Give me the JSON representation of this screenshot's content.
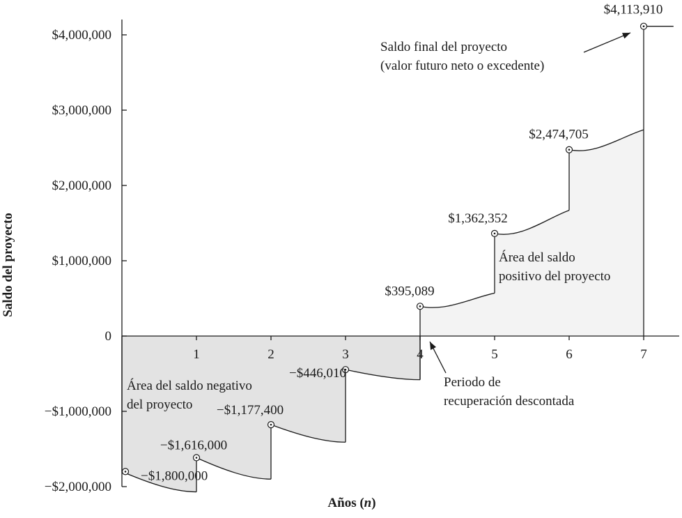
{
  "chart_data": {
    "type": "area",
    "xlabel_prefix": "Años (",
    "xlabel_var": "n",
    "xlabel_suffix": ")",
    "ylabel": "Saldo del proyecto",
    "x_ticks": [
      "1",
      "2",
      "3",
      "4",
      "5",
      "6",
      "7"
    ],
    "y_ticks": [
      {
        "value": 4000000,
        "label": "$4,000,000"
      },
      {
        "value": 3000000,
        "label": "$3,000,000"
      },
      {
        "value": 2000000,
        "label": "$2,000,000"
      },
      {
        "value": 1000000,
        "label": "$1,000,000"
      },
      {
        "value": 0,
        "label": "0"
      },
      {
        "value": -1000000,
        "label": "−$1,000,000"
      },
      {
        "value": -2000000,
        "label": "−$2,000,000"
      }
    ],
    "xlim": [
      0,
      7.5
    ],
    "ylim": [
      -2000000,
      4300000
    ],
    "points": [
      {
        "x": 0,
        "y": -1800000,
        "label": "−$1,800,000"
      },
      {
        "x": 1,
        "y": -1616000,
        "label": "−$1,616,000"
      },
      {
        "x": 2,
        "y": -1177400,
        "label": "−$1,177,400"
      },
      {
        "x": 3,
        "y": -446010,
        "label": "−$446,010"
      },
      {
        "x": 4,
        "y": 395089,
        "label": "$395,089"
      },
      {
        "x": 5,
        "y": 1362352,
        "label": "$1,362,352"
      },
      {
        "x": 6,
        "y": 2474705,
        "label": "$2,474,705"
      },
      {
        "x": 7,
        "y": 4113910,
        "label": "$4,113,910"
      }
    ],
    "year_end_before_cashflow": [
      {
        "x": 1,
        "y": -2070000
      },
      {
        "x": 2,
        "y": -1900000
      },
      {
        "x": 3,
        "y": -1410000
      },
      {
        "x": 4,
        "y": -580000
      },
      {
        "x": 5,
        "y": 570000
      },
      {
        "x": 6,
        "y": 1670000
      },
      {
        "x": 7,
        "y": 2740000
      }
    ],
    "annotations": {
      "final_balance": [
        "Saldo final del proyecto",
        "(valor futuro neto o excedente)"
      ],
      "positive_area": [
        "Área del saldo",
        "positivo del proyecto"
      ],
      "negative_area": [
        "Área del saldo negativo",
        "del proyecto"
      ],
      "payback": [
        "Periodo de",
        "recuperación descontada"
      ]
    },
    "colors": {
      "negative_fill": "#e3e3e3",
      "positive_fill": "#f3f3f3",
      "line": "#1a1a1a"
    }
  }
}
